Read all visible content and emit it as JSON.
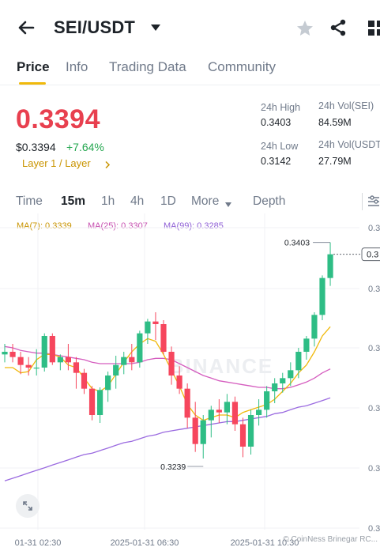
{
  "header": {
    "pair": "SEI/USDT"
  },
  "tabs": [
    {
      "label": "Price"
    },
    {
      "label": "Info"
    },
    {
      "label": "Trading Data"
    },
    {
      "label": "Community"
    }
  ],
  "ticker": {
    "last_price": "0.3394",
    "usd_price": "$0.3394",
    "change_pct": "+7.64%",
    "tag": "Layer 1 / Layer",
    "high_label": "24h High",
    "high_value": "0.3403",
    "low_label": "24h Low",
    "low_value": "0.3142",
    "vol_sei_label": "24h Vol(SEI)",
    "vol_sei_value": "84.59M",
    "vol_usdt_label": "24h Vol(USDT",
    "vol_usdt_value": "27.79M"
  },
  "timeframes": [
    {
      "label": "Time"
    },
    {
      "label": "15m"
    },
    {
      "label": "1h"
    },
    {
      "label": "4h"
    },
    {
      "label": "1D"
    },
    {
      "label": "More"
    },
    {
      "label": "Depth"
    }
  ],
  "indicators": {
    "ma7": "MA(7): 0.3339",
    "ma25": "MA(25): 0.3307",
    "ma99": "MA(99): 0.3285"
  },
  "colors": {
    "up": "#2ebd85",
    "down": "#f6465d",
    "ma7": "#f0b90b",
    "ma25": "#d55dbf",
    "ma99": "#9b6be0",
    "accent": "#f0b90b"
  },
  "watermark": "BINANCE",
  "credit": "© CoinNess Brinegar RC...",
  "chart_data": {
    "type": "candlestick",
    "interval": "15m",
    "y_axis_labels": [
      "0.3",
      "0.3",
      "0.3",
      "0.3",
      "0.3",
      "0.3",
      "0.3",
      "0.3"
    ],
    "current_price_label": "0.3",
    "x_axis_labels": [
      "01-31 02:30",
      "2025-01-31 06:30",
      "2025-01-31 10:30"
    ],
    "annotations": {
      "high": "0.3403",
      "low": "0.3239"
    },
    "candles": [
      {
        "o": 0.3318,
        "h": 0.3326,
        "l": 0.3312,
        "c": 0.332
      },
      {
        "o": 0.332,
        "h": 0.3326,
        "l": 0.3312,
        "c": 0.3316
      },
      {
        "o": 0.3316,
        "h": 0.332,
        "l": 0.3303,
        "c": 0.331
      },
      {
        "o": 0.331,
        "h": 0.3316,
        "l": 0.3302,
        "c": 0.3308
      },
      {
        "o": 0.3308,
        "h": 0.3322,
        "l": 0.3302,
        "c": 0.3308
      },
      {
        "o": 0.3308,
        "h": 0.3334,
        "l": 0.3305,
        "c": 0.3332
      },
      {
        "o": 0.3332,
        "h": 0.3334,
        "l": 0.331,
        "c": 0.3312
      },
      {
        "o": 0.3312,
        "h": 0.3318,
        "l": 0.3306,
        "c": 0.3316
      },
      {
        "o": 0.3316,
        "h": 0.3326,
        "l": 0.3306,
        "c": 0.3312
      },
      {
        "o": 0.3312,
        "h": 0.3316,
        "l": 0.3292,
        "c": 0.3304
      },
      {
        "o": 0.3304,
        "h": 0.3307,
        "l": 0.3288,
        "c": 0.3292
      },
      {
        "o": 0.3292,
        "h": 0.3294,
        "l": 0.3268,
        "c": 0.3272
      },
      {
        "o": 0.3272,
        "h": 0.3293,
        "l": 0.3266,
        "c": 0.3291
      },
      {
        "o": 0.3291,
        "h": 0.3305,
        "l": 0.3282,
        "c": 0.3302
      },
      {
        "o": 0.3302,
        "h": 0.3317,
        "l": 0.3292,
        "c": 0.331
      },
      {
        "o": 0.331,
        "h": 0.332,
        "l": 0.3303,
        "c": 0.3316
      },
      {
        "o": 0.3316,
        "h": 0.3326,
        "l": 0.3306,
        "c": 0.3312
      },
      {
        "o": 0.3312,
        "h": 0.3336,
        "l": 0.3308,
        "c": 0.3334
      },
      {
        "o": 0.3334,
        "h": 0.3345,
        "l": 0.3326,
        "c": 0.3343
      },
      {
        "o": 0.3343,
        "h": 0.335,
        "l": 0.3329,
        "c": 0.3341
      },
      {
        "o": 0.3341,
        "h": 0.3344,
        "l": 0.3318,
        "c": 0.332
      },
      {
        "o": 0.332,
        "h": 0.3324,
        "l": 0.3295,
        "c": 0.3302
      },
      {
        "o": 0.3302,
        "h": 0.3309,
        "l": 0.3288,
        "c": 0.3292
      },
      {
        "o": 0.3292,
        "h": 0.3296,
        "l": 0.3262,
        "c": 0.327
      },
      {
        "o": 0.327,
        "h": 0.3282,
        "l": 0.3244,
        "c": 0.325
      },
      {
        "o": 0.325,
        "h": 0.3272,
        "l": 0.3239,
        "c": 0.3268
      },
      {
        "o": 0.3268,
        "h": 0.3279,
        "l": 0.3255,
        "c": 0.3276
      },
      {
        "o": 0.3276,
        "h": 0.3284,
        "l": 0.3266,
        "c": 0.3274
      },
      {
        "o": 0.3274,
        "h": 0.3288,
        "l": 0.3265,
        "c": 0.3282
      },
      {
        "o": 0.3282,
        "h": 0.3286,
        "l": 0.326,
        "c": 0.3265
      },
      {
        "o": 0.3265,
        "h": 0.327,
        "l": 0.324,
        "c": 0.3248
      },
      {
        "o": 0.3248,
        "h": 0.3276,
        "l": 0.3242,
        "c": 0.3272
      },
      {
        "o": 0.3272,
        "h": 0.3284,
        "l": 0.3264,
        "c": 0.3276
      },
      {
        "o": 0.3276,
        "h": 0.3294,
        "l": 0.327,
        "c": 0.329
      },
      {
        "o": 0.329,
        "h": 0.33,
        "l": 0.3281,
        "c": 0.3296
      },
      {
        "o": 0.3296,
        "h": 0.3304,
        "l": 0.3289,
        "c": 0.33
      },
      {
        "o": 0.33,
        "h": 0.3312,
        "l": 0.3294,
        "c": 0.3306
      },
      {
        "o": 0.3306,
        "h": 0.3323,
        "l": 0.33,
        "c": 0.332
      },
      {
        "o": 0.332,
        "h": 0.3332,
        "l": 0.3314,
        "c": 0.333
      },
      {
        "o": 0.333,
        "h": 0.335,
        "l": 0.3324,
        "c": 0.3348
      },
      {
        "o": 0.3348,
        "h": 0.3378,
        "l": 0.3344,
        "c": 0.3376
      },
      {
        "o": 0.3376,
        "h": 0.3403,
        "l": 0.337,
        "c": 0.3394
      }
    ],
    "ma7": [
      0.3308,
      0.3308,
      0.3304,
      0.3305,
      0.3314,
      0.3318,
      0.3318,
      0.3316,
      0.331,
      0.3308,
      0.33,
      0.3292,
      0.329,
      0.3294,
      0.3303,
      0.3312,
      0.332,
      0.3326,
      0.333,
      0.3328,
      0.3318,
      0.3306,
      0.3294,
      0.328,
      0.3272,
      0.3268,
      0.327,
      0.3272,
      0.3272,
      0.327,
      0.3274,
      0.3276,
      0.3278,
      0.328,
      0.3284,
      0.329,
      0.3296,
      0.3304,
      0.331,
      0.332,
      0.3332,
      0.3339
    ],
    "ma25": [
      0.3324,
      0.3323,
      0.3321,
      0.332,
      0.3319,
      0.3319,
      0.3318,
      0.3317,
      0.3316,
      0.3315,
      0.3314,
      0.3312,
      0.3311,
      0.3311,
      0.3311,
      0.3311,
      0.3311,
      0.3312,
      0.3314,
      0.3315,
      0.3315,
      0.3314,
      0.3311,
      0.3308,
      0.3305,
      0.3302,
      0.33,
      0.3298,
      0.3297,
      0.3296,
      0.3295,
      0.3294,
      0.3293,
      0.3293,
      0.3292,
      0.3292,
      0.3293,
      0.3295,
      0.3297,
      0.33,
      0.3304,
      0.3307
    ],
    "ma99": [
      0.3222,
      0.3224,
      0.3226,
      0.3228,
      0.323,
      0.3232,
      0.3234,
      0.3236,
      0.3238,
      0.324,
      0.3242,
      0.3243,
      0.3245,
      0.3247,
      0.3249,
      0.3251,
      0.3252,
      0.3254,
      0.3256,
      0.3257,
      0.3259,
      0.326,
      0.3261,
      0.3262,
      0.3263,
      0.3264,
      0.3265,
      0.3266,
      0.3267,
      0.3267,
      0.3268,
      0.3269,
      0.327,
      0.3271,
      0.3273,
      0.3274,
      0.3276,
      0.3278,
      0.3279,
      0.3281,
      0.3283,
      0.3285
    ]
  }
}
